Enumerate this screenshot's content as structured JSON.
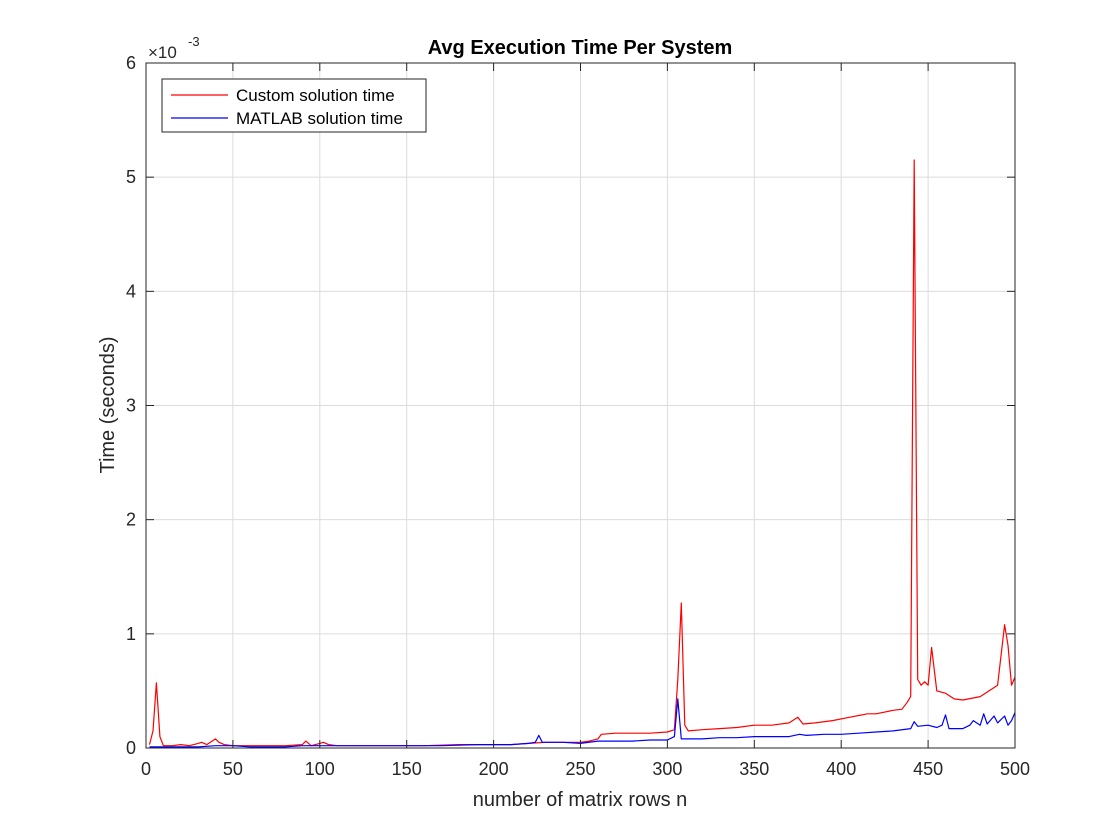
{
  "chart_data": {
    "type": "line",
    "title": "Avg Execution Time Per System",
    "xlabel": "number of matrix rows n",
    "ylabel": "Time (seconds)",
    "y_exponent_base": "×10",
    "y_exponent": "-3",
    "xlim": [
      0,
      500
    ],
    "ylim": [
      0,
      6
    ],
    "y_scale_note": "values in units of 1e-3 seconds",
    "xticks": [
      "0",
      "50",
      "100",
      "150",
      "200",
      "250",
      "300",
      "350",
      "400",
      "450",
      "500"
    ],
    "yticks": [
      "0",
      "1",
      "2",
      "3",
      "4",
      "5",
      "6"
    ],
    "grid": true,
    "legend_position": "top-left",
    "series": [
      {
        "name": "Custom solution time",
        "color": "#ff0000",
        "x": [
          2,
          4,
          6,
          8,
          10,
          15,
          20,
          25,
          30,
          32,
          35,
          40,
          42,
          45,
          50,
          55,
          60,
          70,
          80,
          90,
          92,
          95,
          100,
          102,
          105,
          110,
          120,
          140,
          160,
          180,
          200,
          210,
          220,
          230,
          240,
          250,
          255,
          260,
          262,
          270,
          280,
          290,
          300,
          304,
          306,
          308,
          310,
          312,
          320,
          330,
          340,
          350,
          360,
          370,
          375,
          378,
          385,
          395,
          405,
          412,
          415,
          420,
          430,
          435,
          438,
          440,
          442,
          444,
          446,
          448,
          450,
          452,
          455,
          460,
          465,
          470,
          480,
          490,
          494,
          496,
          498,
          500
        ],
        "y": [
          0.03,
          0.15,
          0.57,
          0.1,
          0.02,
          0.02,
          0.03,
          0.02,
          0.04,
          0.05,
          0.03,
          0.08,
          0.05,
          0.03,
          0.02,
          0.02,
          0.02,
          0.02,
          0.02,
          0.03,
          0.06,
          0.02,
          0.04,
          0.05,
          0.03,
          0.02,
          0.02,
          0.02,
          0.02,
          0.03,
          0.03,
          0.03,
          0.04,
          0.05,
          0.05,
          0.05,
          0.06,
          0.08,
          0.12,
          0.13,
          0.13,
          0.13,
          0.14,
          0.16,
          0.6,
          1.27,
          0.2,
          0.15,
          0.16,
          0.17,
          0.18,
          0.2,
          0.2,
          0.22,
          0.27,
          0.21,
          0.22,
          0.24,
          0.27,
          0.29,
          0.3,
          0.3,
          0.33,
          0.34,
          0.4,
          0.45,
          5.15,
          0.6,
          0.55,
          0.58,
          0.55,
          0.88,
          0.5,
          0.48,
          0.43,
          0.42,
          0.45,
          0.55,
          1.08,
          0.9,
          0.55,
          0.62
        ]
      },
      {
        "name": "MATLAB solution time",
        "color": "#0000ff",
        "x": [
          2,
          5,
          10,
          20,
          30,
          40,
          50,
          60,
          80,
          90,
          100,
          110,
          130,
          150,
          170,
          190,
          200,
          210,
          220,
          224,
          226,
          228,
          240,
          250,
          260,
          270,
          280,
          290,
          300,
          304,
          306,
          308,
          310,
          320,
          330,
          340,
          350,
          360,
          370,
          376,
          380,
          390,
          400,
          410,
          420,
          430,
          440,
          442,
          444,
          450,
          455,
          458,
          460,
          462,
          470,
          474,
          476,
          480,
          482,
          484,
          488,
          490,
          494,
          496,
          498,
          500
        ],
        "y": [
          0.01,
          0.01,
          0.01,
          0.01,
          0.01,
          0.02,
          0.02,
          0.01,
          0.01,
          0.02,
          0.02,
          0.02,
          0.02,
          0.02,
          0.02,
          0.03,
          0.03,
          0.03,
          0.04,
          0.05,
          0.11,
          0.05,
          0.05,
          0.04,
          0.06,
          0.06,
          0.06,
          0.07,
          0.07,
          0.1,
          0.43,
          0.08,
          0.08,
          0.08,
          0.09,
          0.09,
          0.1,
          0.1,
          0.1,
          0.12,
          0.11,
          0.12,
          0.12,
          0.13,
          0.14,
          0.15,
          0.17,
          0.23,
          0.19,
          0.2,
          0.18,
          0.2,
          0.29,
          0.17,
          0.17,
          0.2,
          0.24,
          0.2,
          0.3,
          0.21,
          0.28,
          0.22,
          0.28,
          0.2,
          0.24,
          0.31
        ]
      }
    ]
  }
}
